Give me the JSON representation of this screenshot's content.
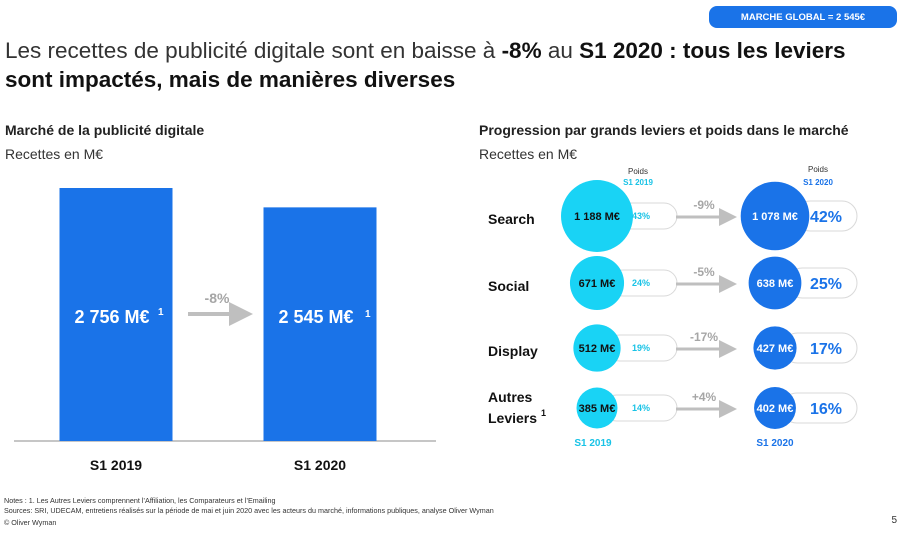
{
  "badge": "MARCHE GLOBAL = 2 545€",
  "title": {
    "part1": "Les recettes de publicité digitale sont en baisse à ",
    "bold1": "-8%",
    "part2": " au ",
    "bold2": "S1 2020 : tous les leviers sont impactés, mais de manières diverses"
  },
  "left": {
    "title": "Marché de la publicité digitale",
    "unit": "Recettes en M€"
  },
  "right": {
    "title": "Progression par grands leviers et poids dans le marché",
    "unit": "Recettes en M€"
  },
  "colors": {
    "bar": "#1a73e8",
    "cyan": "#19d3f5",
    "blue": "#1a73e8",
    "arrow": "#bfbfbf",
    "cyan_text": "#19c3e6"
  },
  "chart_data": [
    {
      "type": "bar",
      "categories": [
        "S1 2019",
        "S1 2020"
      ],
      "values": [
        2756,
        2545
      ],
      "value_labels": [
        "2 756 M€",
        "2 545 M€"
      ],
      "footnote_mark": "1",
      "change_label": "-8%"
    },
    {
      "type": "bubble",
      "col_header_2019": [
        "Poids",
        "S1 2019"
      ],
      "col_header_2020": [
        "Poids",
        "S1 2020"
      ],
      "col_footer_2019": "S1 2019",
      "col_footer_2020": "S1 2020",
      "rows": [
        {
          "name": "Search",
          "v2019": 1188,
          "label2019": "1 188 M€",
          "share2019": "43%",
          "change": "-9%",
          "v2020": 1078,
          "label2020": "1 078 M€",
          "share2020": "42%"
        },
        {
          "name": "Social",
          "v2019": 671,
          "label2019": "671 M€",
          "share2019": "24%",
          "change": "-5%",
          "v2020": 638,
          "label2020": "638 M€",
          "share2020": "25%"
        },
        {
          "name": "Display",
          "v2019": 512,
          "label2019": "512 M€",
          "share2019": "19%",
          "change": "-17%",
          "v2020": 427,
          "label2020": "427 M€",
          "share2020": "17%"
        },
        {
          "name": "Autres Leviers",
          "name_lines": [
            "Autres",
            "Leviers"
          ],
          "sup": "1",
          "v2019": 385,
          "label2019": "385 M€",
          "share2019": "14%",
          "change": "+4%",
          "v2020": 402,
          "label2020": "402 M€",
          "share2020": "16%"
        }
      ]
    }
  ],
  "notes": [
    "Notes : 1. Les Autres Leviers comprennent l’Affiliation, les Comparateurs et l’Emailing",
    "Sources: SRI, UDECAM, entretiens réalisés sur la période de mai et juin 2020 avec les acteurs du marché, informations publiques, analyse Oliver Wyman"
  ],
  "copyright": "© Oliver Wyman",
  "page_number": "5"
}
